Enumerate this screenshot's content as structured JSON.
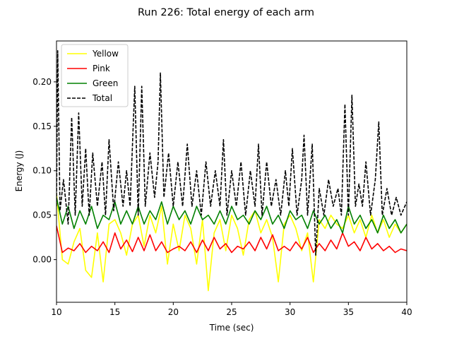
{
  "chart_data": {
    "type": "line",
    "title": "Run 226: Total energy of each arm",
    "xlabel": "Time (sec)",
    "ylabel": "Energy (J)",
    "xlim": [
      10,
      40
    ],
    "ylim": [
      -0.048,
      0.246
    ],
    "xticks": [
      10,
      15,
      20,
      25,
      30,
      35,
      40
    ],
    "yticks": [
      0.0,
      0.05,
      0.1,
      0.15,
      0.2
    ],
    "ytick_labels": [
      "0.00",
      "0.05",
      "0.10",
      "0.15",
      "0.20"
    ],
    "legend_position": "top-left",
    "grid": false,
    "series": [
      {
        "name": "Yellow",
        "color": "#ffff00",
        "dash": "solid",
        "x": [
          10.0,
          10.5,
          11.0,
          11.5,
          12.0,
          12.5,
          13.0,
          13.5,
          14.0,
          14.5,
          15.0,
          15.5,
          16.0,
          16.5,
          17.0,
          17.5,
          18.0,
          18.5,
          19.0,
          19.5,
          20.0,
          20.5,
          21.0,
          21.5,
          22.0,
          22.5,
          23.0,
          23.5,
          24.0,
          24.5,
          25.0,
          25.5,
          26.0,
          26.5,
          27.0,
          27.5,
          28.0,
          28.5,
          29.0,
          29.5,
          30.0,
          30.5,
          31.0,
          31.5,
          32.0,
          32.5,
          33.0,
          33.5,
          34.0,
          34.5,
          35.0,
          35.5,
          36.0,
          36.5,
          37.0,
          37.5,
          38.0,
          38.5,
          39.0,
          39.5,
          40.0
        ],
        "values": [
          0.075,
          0.0,
          -0.005,
          0.02,
          0.035,
          -0.012,
          -0.02,
          0.03,
          -0.025,
          0.04,
          0.045,
          0.03,
          0.005,
          0.04,
          0.05,
          0.015,
          0.05,
          0.03,
          0.06,
          -0.005,
          0.04,
          0.01,
          0.05,
          0.035,
          -0.005,
          0.045,
          -0.035,
          0.03,
          0.045,
          0.01,
          0.05,
          0.035,
          0.005,
          0.045,
          0.055,
          0.03,
          0.045,
          0.025,
          -0.025,
          0.04,
          0.05,
          0.035,
          0.01,
          0.03,
          -0.025,
          0.045,
          0.035,
          0.05,
          0.04,
          0.035,
          0.05,
          0.03,
          0.045,
          0.025,
          0.05,
          0.03,
          0.045,
          0.025,
          0.04,
          0.03,
          0.04
        ]
      },
      {
        "name": "Pink",
        "color": "#ff0000",
        "dash": "solid",
        "x": [
          10.0,
          10.5,
          11.0,
          11.5,
          12.0,
          12.5,
          13.0,
          13.5,
          14.0,
          14.5,
          15.0,
          15.5,
          16.0,
          16.5,
          17.0,
          17.5,
          18.0,
          18.5,
          19.0,
          19.5,
          20.0,
          20.5,
          21.0,
          21.5,
          22.0,
          22.5,
          23.0,
          23.5,
          24.0,
          24.5,
          25.0,
          25.5,
          26.0,
          26.5,
          27.0,
          27.5,
          28.0,
          28.5,
          29.0,
          29.5,
          30.0,
          30.5,
          31.0,
          31.5,
          32.0,
          32.5,
          33.0,
          33.5,
          34.0,
          34.5,
          35.0,
          35.5,
          36.0,
          36.5,
          37.0,
          37.5,
          38.0,
          38.5,
          39.0,
          39.5,
          40.0
        ],
        "values": [
          0.038,
          0.008,
          0.013,
          0.01,
          0.018,
          0.008,
          0.015,
          0.01,
          0.02,
          0.008,
          0.03,
          0.012,
          0.022,
          0.009,
          0.025,
          0.01,
          0.028,
          0.01,
          0.02,
          0.008,
          0.012,
          0.015,
          0.01,
          0.02,
          0.008,
          0.022,
          0.01,
          0.025,
          0.012,
          0.018,
          0.008,
          0.015,
          0.012,
          0.02,
          0.01,
          0.025,
          0.012,
          0.028,
          0.01,
          0.015,
          0.01,
          0.02,
          0.012,
          0.025,
          0.008,
          0.018,
          0.01,
          0.022,
          0.012,
          0.03,
          0.015,
          0.02,
          0.01,
          0.025,
          0.012,
          0.018,
          0.01,
          0.015,
          0.008,
          0.012,
          0.01
        ]
      },
      {
        "name": "Green",
        "color": "#008000",
        "dash": "solid",
        "x": [
          10.0,
          10.5,
          11.0,
          11.5,
          12.0,
          12.5,
          13.0,
          13.5,
          14.0,
          14.5,
          15.0,
          15.5,
          16.0,
          16.5,
          17.0,
          17.5,
          18.0,
          18.5,
          19.0,
          19.5,
          20.0,
          20.5,
          21.0,
          21.5,
          22.0,
          22.5,
          23.0,
          23.5,
          24.0,
          24.5,
          25.0,
          25.5,
          26.0,
          26.5,
          27.0,
          27.5,
          28.0,
          28.5,
          29.0,
          29.5,
          30.0,
          30.5,
          31.0,
          31.5,
          32.0,
          32.5,
          33.0,
          33.5,
          34.0,
          34.5,
          35.0,
          35.5,
          36.0,
          36.5,
          37.0,
          37.5,
          38.0,
          38.5,
          39.0,
          39.5,
          40.0
        ],
        "values": [
          0.07,
          0.04,
          0.06,
          0.035,
          0.055,
          0.04,
          0.06,
          0.035,
          0.05,
          0.045,
          0.065,
          0.04,
          0.055,
          0.04,
          0.06,
          0.04,
          0.055,
          0.045,
          0.065,
          0.04,
          0.06,
          0.045,
          0.055,
          0.04,
          0.06,
          0.045,
          0.05,
          0.04,
          0.055,
          0.04,
          0.06,
          0.045,
          0.05,
          0.04,
          0.055,
          0.045,
          0.06,
          0.04,
          0.05,
          0.035,
          0.055,
          0.045,
          0.05,
          0.035,
          0.055,
          0.04,
          0.05,
          0.035,
          0.045,
          0.03,
          0.06,
          0.04,
          0.05,
          0.035,
          0.045,
          0.03,
          0.05,
          0.035,
          0.045,
          0.03,
          0.04
        ]
      },
      {
        "name": "Total",
        "color": "#000000",
        "dash": "dashed",
        "x": [
          10.0,
          10.1,
          10.3,
          10.6,
          11.0,
          11.3,
          11.6,
          11.9,
          12.2,
          12.5,
          12.8,
          13.1,
          13.5,
          13.9,
          14.2,
          14.5,
          14.9,
          15.3,
          15.7,
          16.0,
          16.3,
          16.7,
          17.0,
          17.3,
          17.6,
          18.0,
          18.4,
          18.7,
          18.9,
          19.2,
          19.6,
          20.0,
          20.4,
          20.8,
          21.2,
          21.6,
          22.0,
          22.4,
          22.8,
          23.2,
          23.6,
          24.0,
          24.3,
          24.6,
          25.0,
          25.4,
          25.8,
          26.2,
          26.6,
          27.0,
          27.3,
          27.6,
          28.0,
          28.4,
          28.8,
          29.2,
          29.6,
          29.9,
          30.2,
          30.6,
          31.0,
          31.2,
          31.5,
          31.9,
          32.2,
          32.5,
          32.9,
          33.3,
          33.7,
          34.1,
          34.4,
          34.7,
          35.0,
          35.3,
          35.6,
          35.9,
          36.2,
          36.5,
          36.9,
          37.3,
          37.6,
          37.9,
          38.3,
          38.7,
          39.1,
          39.5,
          40.0
        ],
        "values": [
          0.06,
          0.235,
          0.055,
          0.09,
          0.04,
          0.16,
          0.05,
          0.165,
          0.06,
          0.125,
          0.05,
          0.12,
          0.06,
          0.11,
          0.05,
          0.135,
          0.055,
          0.11,
          0.06,
          0.1,
          0.06,
          0.195,
          0.05,
          0.195,
          0.06,
          0.12,
          0.07,
          0.11,
          0.21,
          0.07,
          0.12,
          0.06,
          0.11,
          0.06,
          0.13,
          0.06,
          0.1,
          0.05,
          0.11,
          0.06,
          0.1,
          0.06,
          0.135,
          0.05,
          0.1,
          0.06,
          0.11,
          0.05,
          0.1,
          0.06,
          0.13,
          0.05,
          0.11,
          0.06,
          0.09,
          0.05,
          0.1,
          0.06,
          0.125,
          0.05,
          0.09,
          0.14,
          0.05,
          0.13,
          0.005,
          0.08,
          0.05,
          0.09,
          0.06,
          0.08,
          0.05,
          0.175,
          0.05,
          0.185,
          0.06,
          0.085,
          0.06,
          0.11,
          0.05,
          0.09,
          0.155,
          0.05,
          0.08,
          0.05,
          0.07,
          0.05,
          0.065
        ]
      }
    ]
  }
}
